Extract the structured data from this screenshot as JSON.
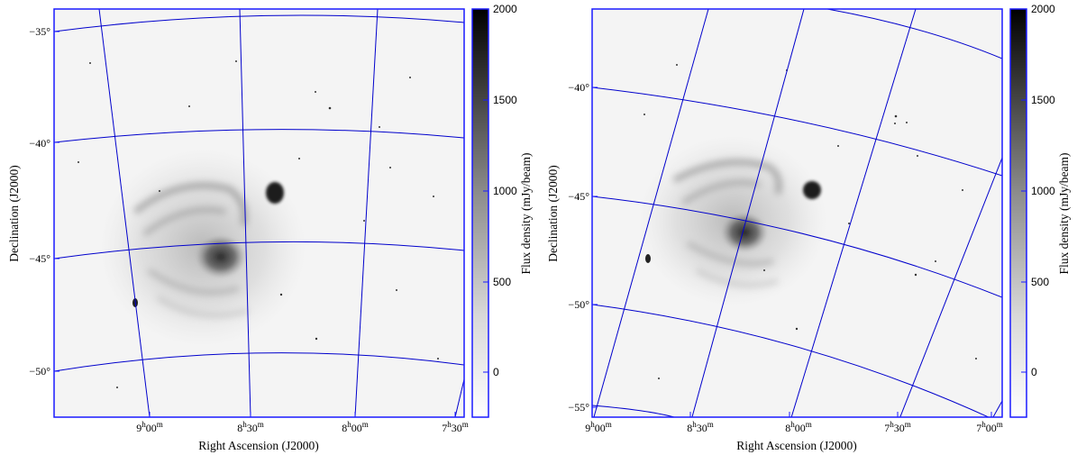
{
  "panels": [
    {
      "ylabel": "Declination (J2000)",
      "xlabel": "Right Ascension (J2000)",
      "dec_ticks": [
        "−35°",
        "−40°",
        "−45°",
        "−50°"
      ],
      "ra_ticks": [
        {
          "h": "9",
          "m": "00"
        },
        {
          "h": "8",
          "m": "30"
        },
        {
          "h": "8",
          "m": "00"
        },
        {
          "h": "7",
          "m": "30"
        }
      ],
      "colorbar": {
        "label": "Flux density (mJy/beam)",
        "ticks": [
          "2000",
          "1500",
          "1000",
          "500",
          "0"
        ]
      }
    },
    {
      "ylabel": "Declination (J2000)",
      "xlabel": "Right Ascension (J2000)",
      "dec_ticks": [
        "−40°",
        "−45°",
        "−50°",
        "−55°"
      ],
      "ra_ticks": [
        {
          "h": "9",
          "m": "00"
        },
        {
          "h": "8",
          "m": "30"
        },
        {
          "h": "8",
          "m": "00"
        },
        {
          "h": "7",
          "m": "30"
        },
        {
          "h": "7",
          "m": "00"
        }
      ],
      "colorbar": {
        "label": "Flux density (mJy/beam)",
        "ticks": [
          "2000",
          "1500",
          "1000",
          "500",
          "0"
        ]
      }
    }
  ],
  "colors": {
    "frame": "#1a1aff",
    "grid": "#0000cc",
    "background": "#f4f4f4",
    "emission": "#2a2a2a",
    "colormap": "greyscale (white to black)"
  }
}
